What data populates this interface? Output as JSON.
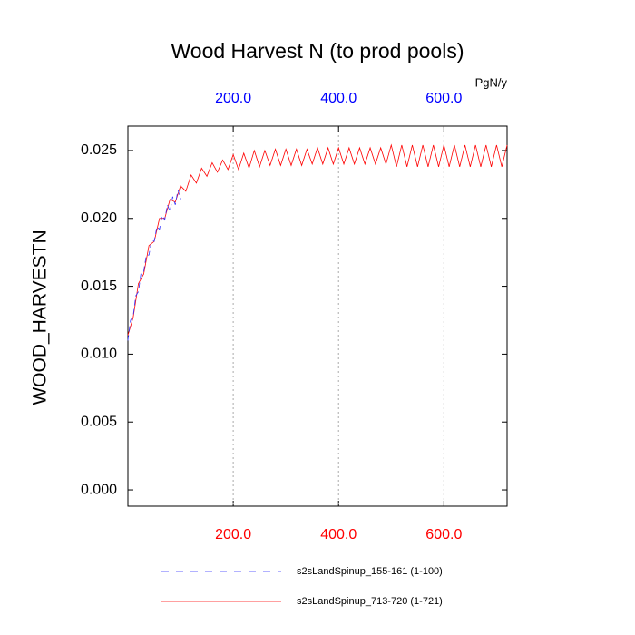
{
  "chart_data": {
    "type": "line",
    "title": "Wood Harvest N (to prod pools)",
    "ylabel": "WOOD_HARVESTN",
    "x2_label": "PgN/y",
    "xlim": [
      0,
      720
    ],
    "ylim": [
      -0.0012,
      0.0268
    ],
    "xticks": [
      {
        "value": 200,
        "label": "200.0"
      },
      {
        "value": 400,
        "label": "400.0"
      },
      {
        "value": 600,
        "label": "600.0"
      }
    ],
    "x2ticks": [
      {
        "value": 200,
        "label": "200.0"
      },
      {
        "value": 400,
        "label": "400.0"
      },
      {
        "value": 600,
        "label": "600.0"
      }
    ],
    "xtick_color": "#ff0000",
    "x2tick_color": "#0000ff",
    "yticks": [
      {
        "value": 0,
        "label": "0.000"
      },
      {
        "value": 0.005,
        "label": "0.005"
      },
      {
        "value": 0.01,
        "label": "0.010"
      },
      {
        "value": 0.015,
        "label": "0.015"
      },
      {
        "value": 0.02,
        "label": "0.020"
      },
      {
        "value": 0.025,
        "label": "0.025"
      }
    ],
    "grid": true,
    "legend": "bottom",
    "series": [
      {
        "name": "s2sLandSpinup_155-161 (1-100)",
        "color": "#3333ff",
        "dash": true,
        "x": [
          0,
          5,
          10,
          15,
          20,
          25,
          30,
          35,
          40,
          45,
          50,
          55,
          60,
          65,
          70,
          75,
          80,
          85,
          90,
          95,
          100
        ],
        "values": [
          0.011,
          0.0125,
          0.0128,
          0.0143,
          0.0146,
          0.016,
          0.0161,
          0.0173,
          0.0173,
          0.0184,
          0.0183,
          0.0194,
          0.0192,
          0.0202,
          0.0199,
          0.021,
          0.0205,
          0.0216,
          0.021,
          0.0221,
          0.0214
        ]
      },
      {
        "name": "s2sLandSpinup_713-720 (1-721)",
        "color": "#ff0000",
        "dash": false,
        "x": [
          0,
          10,
          20,
          30,
          40,
          50,
          60,
          70,
          80,
          90,
          100,
          110,
          120,
          130,
          140,
          150,
          160,
          170,
          180,
          190,
          200,
          210,
          220,
          230,
          240,
          250,
          260,
          270,
          280,
          290,
          300,
          310,
          320,
          330,
          340,
          350,
          360,
          370,
          380,
          390,
          400,
          410,
          420,
          430,
          440,
          450,
          460,
          470,
          480,
          490,
          500,
          510,
          520,
          530,
          540,
          550,
          560,
          570,
          580,
          590,
          600,
          610,
          620,
          630,
          640,
          650,
          660,
          670,
          680,
          690,
          700,
          710,
          720
        ],
        "values": [
          0.0114,
          0.0127,
          0.0152,
          0.0159,
          0.018,
          0.0183,
          0.02,
          0.02,
          0.0214,
          0.0212,
          0.0224,
          0.022,
          0.0232,
          0.0226,
          0.0237,
          0.0231,
          0.0241,
          0.0234,
          0.0243,
          0.0236,
          0.0247,
          0.0236,
          0.0248,
          0.0237,
          0.025,
          0.0238,
          0.025,
          0.0239,
          0.0251,
          0.0239,
          0.0251,
          0.0239,
          0.0251,
          0.0239,
          0.0251,
          0.024,
          0.0252,
          0.024,
          0.0252,
          0.024,
          0.0252,
          0.024,
          0.0252,
          0.024,
          0.0252,
          0.024,
          0.0252,
          0.024,
          0.0252,
          0.024,
          0.0254,
          0.0238,
          0.0254,
          0.0238,
          0.0254,
          0.0238,
          0.0254,
          0.0238,
          0.0254,
          0.0238,
          0.0254,
          0.0238,
          0.0254,
          0.0238,
          0.0254,
          0.0238,
          0.0254,
          0.0238,
          0.0254,
          0.0238,
          0.0254,
          0.0238,
          0.0254
        ]
      }
    ]
  }
}
